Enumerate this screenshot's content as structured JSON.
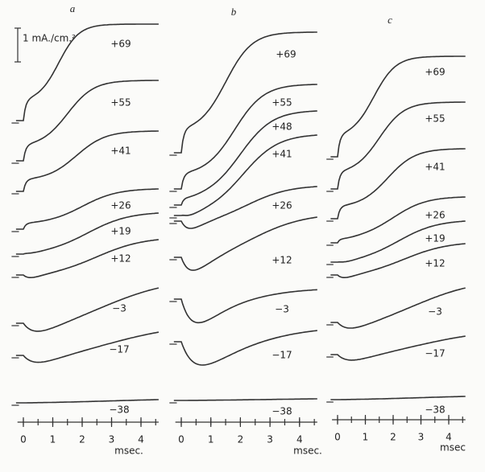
{
  "scale_label": "1 mA./cm.²",
  "panels": [
    {
      "letter": "a",
      "unit": "msec.",
      "ticks": [
        0,
        1,
        2,
        3,
        4
      ],
      "traces": [
        "+69",
        "+55",
        "+41",
        "+26",
        "+19",
        "+12",
        "−3",
        "−17",
        "−38"
      ]
    },
    {
      "letter": "b",
      "unit": "msec.",
      "ticks": [
        0,
        1,
        2,
        3,
        4
      ],
      "traces": [
        "+69",
        "+55",
        "+48",
        "+41",
        "+26",
        "+12",
        "−3",
        "−17",
        "−38"
      ]
    },
    {
      "letter": "c",
      "unit": "msec",
      "ticks": [
        0,
        1,
        2,
        3,
        4
      ],
      "traces": [
        "+69",
        "+55",
        "+41",
        "+26",
        "+19",
        "+12",
        "−3",
        "−17",
        "−38"
      ]
    }
  ]
}
